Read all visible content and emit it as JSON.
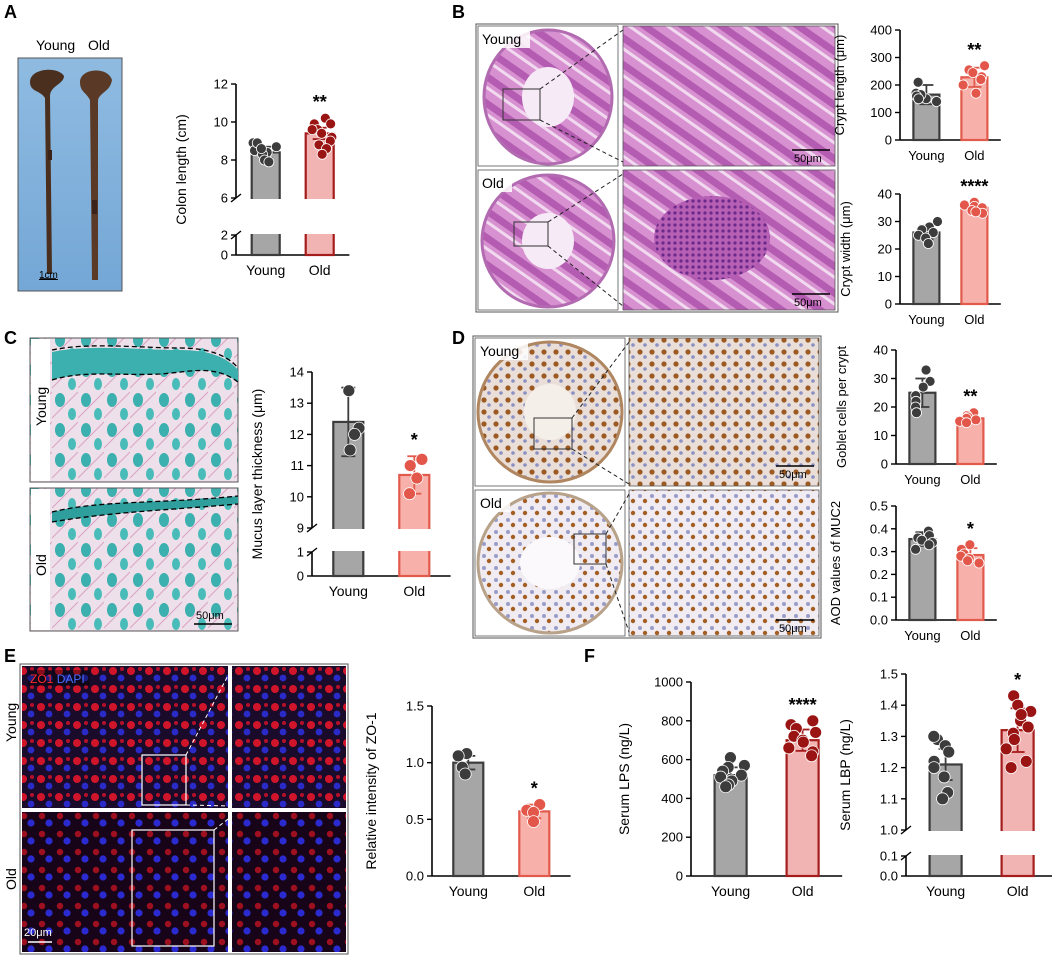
{
  "panels": {
    "A": {
      "letter": "A",
      "photo": {
        "label_young": "Young",
        "label_old": "Old",
        "scale": "1cm"
      },
      "chart_title": ""
    },
    "B": {
      "letter": "B",
      "micro": {
        "young_label": "Young",
        "old_label": "Old",
        "scale_top": "50μm",
        "scale_bottom": "50μm"
      }
    },
    "C": {
      "letter": "C",
      "micro": {
        "young_label": "Young",
        "old_label": "Old",
        "scale": "50μm"
      }
    },
    "D": {
      "letter": "D",
      "micro": {
        "young_label": "Young",
        "old_label": "Old",
        "scale_top": "50μm",
        "scale_bottom": "50μm"
      }
    },
    "E": {
      "letter": "E",
      "micro": {
        "young_label": "Young",
        "old_label": "Old",
        "stain_zo1": "ZO1",
        "stain_dapi": "DAPI",
        "scale": "20μm"
      }
    },
    "F": {
      "letter": "F"
    }
  },
  "colors": {
    "young_bar": "#a6a6a6",
    "young_edge": "#3c3c3c",
    "young_dot": "#3c3c3c",
    "old_bar_A": "#f2b3b3",
    "old_edge_A": "#a51c1c",
    "old_dot_A": "#9b1414",
    "old_bar_pink": "#f8b0aa",
    "old_edge_pink": "#e15a4b",
    "old_dot_pink": "#e2574a"
  },
  "chart_data": [
    {
      "id": "A",
      "type": "bar",
      "categories": [
        "Young",
        "Old"
      ],
      "ylabel": "Colon length (cm)",
      "ylim": [
        0,
        12
      ],
      "axis_break": [
        2,
        6
      ],
      "yticks": [
        0,
        2,
        6,
        8,
        10,
        12
      ],
      "values": [
        8.4,
        9.4
      ],
      "err": [
        0.3,
        0.3
      ],
      "significance": "**",
      "points": [
        [
          8.9,
          8.7,
          8.5,
          8.4,
          8.3,
          8.0,
          7.9,
          8.9,
          8.6
        ],
        [
          10.2,
          9.9,
          9.6,
          9.6,
          9.4,
          9.2,
          9.0,
          8.8,
          8.6,
          8.3,
          9.9
        ]
      ],
      "style": "dark"
    },
    {
      "id": "B1",
      "type": "bar",
      "categories": [
        "Young",
        "Old"
      ],
      "ylabel": "Crypt length (μm)",
      "ylim": [
        0,
        400
      ],
      "yticks": [
        0,
        100,
        200,
        300,
        400
      ],
      "values": [
        165,
        228
      ],
      "err": [
        35,
        35
      ],
      "significance": "**",
      "points": [
        [
          210,
          170,
          150,
          165,
          140,
          160,
          150
        ],
        [
          270,
          255,
          245,
          230,
          220,
          200,
          170
        ]
      ],
      "style": "pink"
    },
    {
      "id": "B2",
      "type": "bar",
      "categories": [
        "Young",
        "Old"
      ],
      "ylabel": "Crypt width (μm)",
      "ylim": [
        0,
        40
      ],
      "yticks": [
        0,
        10,
        20,
        30,
        40
      ],
      "values": [
        26,
        35
      ],
      "err": [
        2.5,
        1.5
      ],
      "significance": "****",
      "points": [
        [
          30,
          28,
          27,
          26,
          25,
          24,
          22
        ],
        [
          37,
          36,
          35.5,
          35,
          34,
          33,
          33.5
        ]
      ],
      "style": "pink"
    },
    {
      "id": "C",
      "type": "bar",
      "categories": [
        "Young",
        "Old"
      ],
      "ylabel": "Mucus layer thickness (μm)",
      "ylim": [
        0,
        14
      ],
      "axis_break": [
        1,
        9
      ],
      "yticks": [
        0,
        1,
        9,
        10,
        11,
        12,
        13,
        14
      ],
      "values": [
        12.4,
        10.7
      ],
      "err": [
        1.1,
        0.6
      ],
      "significance": "*",
      "points": [
        [
          13.4,
          12.2,
          12.0,
          11.5
        ],
        [
          11.2,
          11.0,
          10.6,
          10.1
        ]
      ],
      "style": "pink"
    },
    {
      "id": "D1",
      "type": "bar",
      "categories": [
        "Young",
        "Old"
      ],
      "ylabel": "Goblet cells per crypt",
      "ylim": [
        0,
        40
      ],
      "yticks": [
        0,
        10,
        20,
        30,
        40
      ],
      "values": [
        25,
        16
      ],
      "err": [
        5,
        1.5
      ],
      "significance": "**",
      "points": [
        [
          33,
          29,
          27,
          24,
          22,
          20,
          18
        ],
        [
          18,
          17,
          16.5,
          16,
          15.5,
          15,
          14.5
        ]
      ],
      "style": "pink"
    },
    {
      "id": "D2",
      "type": "bar",
      "categories": [
        "Young",
        "Old"
      ],
      "ylabel": "AOD values of MUC2",
      "ylim": [
        0,
        0.5
      ],
      "yticks": [
        0.0,
        0.1,
        0.2,
        0.3,
        0.4,
        0.5
      ],
      "values": [
        0.355,
        0.285
      ],
      "err": [
        0.03,
        0.03
      ],
      "significance": "*",
      "points": [
        [
          0.39,
          0.37,
          0.36,
          0.35,
          0.34,
          0.33,
          0.31
        ],
        [
          0.33,
          0.31,
          0.29,
          0.28,
          0.27,
          0.25,
          0.26
        ]
      ],
      "style": "pink"
    },
    {
      "id": "E",
      "type": "bar",
      "categories": [
        "Young",
        "Old"
      ],
      "ylabel": "Relative intensity of ZO-1",
      "ylim": [
        0,
        1.5
      ],
      "yticks": [
        0.0,
        0.5,
        1.0,
        1.5
      ],
      "values": [
        1.0,
        0.57
      ],
      "err": [
        0.06,
        0.06
      ],
      "significance": "*",
      "points": [
        [
          1.08,
          1.06,
          0.96,
          0.9
        ],
        [
          0.63,
          0.58,
          0.56,
          0.48
        ]
      ],
      "style": "pink"
    },
    {
      "id": "F1",
      "type": "bar",
      "categories": [
        "Young",
        "Old"
      ],
      "ylabel": "Serum LPS (ng/L)",
      "ylim": [
        0,
        1000
      ],
      "yticks": [
        0,
        200,
        400,
        600,
        800,
        1000
      ],
      "values": [
        520,
        700
      ],
      "err": [
        40,
        55
      ],
      "significance": "****",
      "points": [
        [
          610,
          570,
          560,
          540,
          520,
          510,
          490,
          470,
          460
        ],
        [
          800,
          780,
          760,
          740,
          720,
          700,
          690,
          660,
          640,
          620
        ]
      ],
      "style": "dark"
    },
    {
      "id": "F2",
      "type": "bar",
      "categories": [
        "Young",
        "Old"
      ],
      "ylabel": "Serum LBP (ng/L)",
      "ylim": [
        0,
        1.5
      ],
      "axis_break": [
        0.1,
        1.0
      ],
      "yticks": [
        0.0,
        0.1,
        1.0,
        1.1,
        1.2,
        1.3,
        1.4,
        1.5
      ],
      "values": [
        1.21,
        1.32
      ],
      "err": [
        0.05,
        0.07
      ],
      "significance": "*",
      "points": [
        [
          1.29,
          1.3,
          1.27,
          1.25,
          1.22,
          1.2,
          1.17,
          1.12,
          1.1
        ],
        [
          1.43,
          1.4,
          1.38,
          1.35,
          1.33,
          1.31,
          1.29,
          1.26,
          1.22,
          1.2,
          1.37
        ]
      ],
      "style": "dark"
    }
  ]
}
